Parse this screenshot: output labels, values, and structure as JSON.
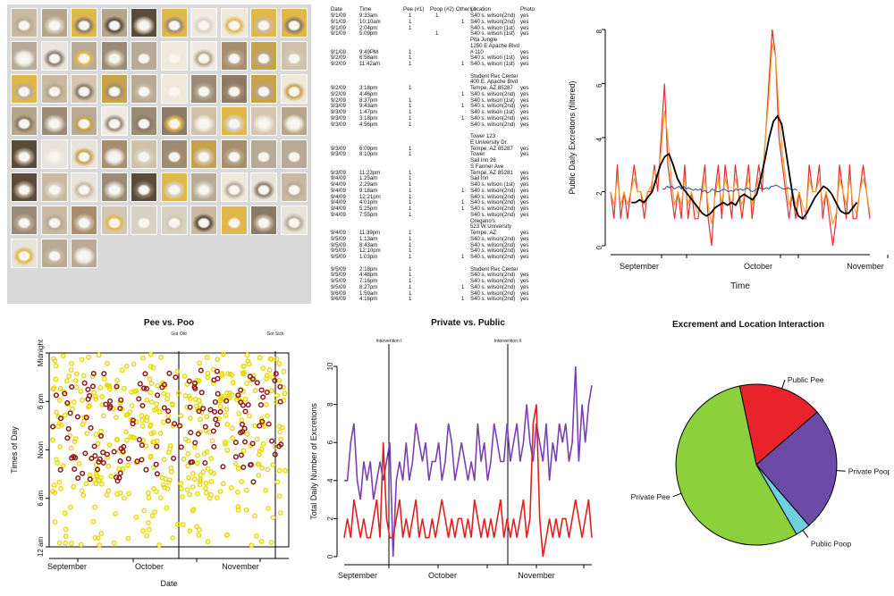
{
  "photo_grid": {
    "count": 73
  },
  "log": {
    "headers": [
      "Date",
      "Time",
      "Pee (#1)",
      "Poop (#2)",
      "Other (#",
      "Location",
      "Photo"
    ],
    "rows": [
      [
        "9/1/09",
        "9:33am",
        "1",
        "1",
        "",
        "S40 s. wilson(2nd)",
        "yes"
      ],
      [
        "9/1/09",
        "10:10am",
        "1",
        "",
        "1",
        "S40 s. wilson(2nd)",
        "yes"
      ],
      [
        "9/1/09",
        "2:04pm",
        "1",
        "",
        "",
        "S40 s. wilson (1st)",
        "yes"
      ],
      [
        "9/1/09",
        "5:09pm",
        "",
        "1",
        "",
        "S40 s. wilson (1st)",
        "yes"
      ],
      [
        "",
        "",
        "",
        "",
        "",
        "Pita Jungle",
        ""
      ],
      [
        "",
        "",
        "",
        "",
        "",
        "1250 E Apache Blvd",
        ""
      ],
      [
        "9/1/09",
        "9:49PM",
        "1",
        "",
        "",
        "# 110",
        "yes"
      ],
      [
        "9/2/09",
        "6:58am",
        "1",
        "",
        "",
        "S40 s. wilson (1st)",
        "yes"
      ],
      [
        "9/2/09",
        "11:42am",
        "1",
        "",
        "1",
        "S40 s. wilson (1st)",
        "yes"
      ],
      [
        "",
        "",
        "",
        "",
        "",
        "",
        ""
      ],
      [
        "",
        "",
        "",
        "",
        "",
        "Student Rec Center",
        ""
      ],
      [
        "",
        "",
        "",
        "",
        "",
        "400 E. Apache Blvd",
        ""
      ],
      [
        "9/2/09",
        "3:18pm",
        "1",
        "",
        "",
        "Tempe, AZ 85287",
        "yes"
      ],
      [
        "9/2/09",
        "4:46pm",
        "",
        "",
        "1",
        "S40 s. wilson(2nd)",
        "yes"
      ],
      [
        "9/2/09",
        "8:37pm",
        "1",
        "",
        "",
        "S40 s. wilson (1st)",
        "yes"
      ],
      [
        "9/3/09",
        "9:43am",
        "1",
        "",
        "1",
        "S40 s. wilson(2nd)",
        "yes"
      ],
      [
        "9/3/09",
        "1:47pm",
        "1",
        "",
        "",
        "S40 s. wilson (1st)",
        "yes"
      ],
      [
        "9/3/09",
        "3:18pm",
        "1",
        "",
        "1",
        "S40 s. wilson(2nd)",
        "yes"
      ],
      [
        "9/3/09",
        "4:56pm",
        "1",
        "",
        "",
        "S40 s. wilson(2nd)",
        "yes"
      ],
      [
        "",
        "",
        "",
        "",
        "",
        "",
        ""
      ],
      [
        "",
        "",
        "",
        "",
        "",
        "Tower             123",
        ""
      ],
      [
        "",
        "",
        "",
        "",
        "",
        "E University Dr.",
        ""
      ],
      [
        "9/3/09",
        "6:09pm",
        "1",
        "",
        "",
        "Tempe, AZ 85287",
        "yes"
      ],
      [
        "9/3/09",
        "8:10pm",
        "1",
        "",
        "",
        "Tower",
        "yes"
      ],
      [
        "",
        "",
        "",
        "",
        "",
        "Sail Inn            26",
        ""
      ],
      [
        "",
        "",
        "",
        "",
        "",
        "S Farmer Ave",
        ""
      ],
      [
        "9/3/09",
        "11:23pm",
        "1",
        "",
        "",
        "Tempe, AZ 85281",
        "yes"
      ],
      [
        "9/4/09",
        "1:25am",
        "1",
        "",
        "",
        "Sail Inn",
        "yes"
      ],
      [
        "9/4/09",
        "2:29am",
        "1",
        "",
        "",
        "S40 s. wilson (1st)",
        "yes"
      ],
      [
        "9/4/09",
        "9:18am",
        "1",
        "",
        "1",
        "S40 s. wilson(2nd)",
        "yes"
      ],
      [
        "9/4/09",
        "12:21pm",
        "1",
        "",
        "",
        "S40 s. wilson(2nd)",
        "yes"
      ],
      [
        "9/4/09",
        "4:01pm",
        "1",
        "",
        "1",
        "S40 s. wilson(2nd)",
        "yes"
      ],
      [
        "9/4/09",
        "5:25pm",
        "1",
        "",
        "1",
        "S40 s. wilson(2nd)",
        "yes"
      ],
      [
        "9/4/09",
        "7:55pm",
        "1",
        "",
        "",
        "S40 s. wilson(2nd)",
        "yes"
      ],
      [
        "",
        "",
        "",
        "",
        "",
        "Oregano's",
        ""
      ],
      [
        "",
        "",
        "",
        "",
        "",
        "523 W University",
        ""
      ],
      [
        "9/4/09",
        "11:39pm",
        "1",
        "",
        "",
        "Tempe, AZ",
        "yes"
      ],
      [
        "9/5/09",
        "1:13am",
        "1",
        "",
        "",
        "S40 s. wilson(2nd)",
        "yes"
      ],
      [
        "9/5/09",
        "8:43am",
        "1",
        "",
        "",
        "S40 s. wilson(2nd)",
        "yes"
      ],
      [
        "9/5/09",
        "12:10pm",
        "1",
        "",
        "",
        "S40 s. wilson(2nd)",
        "yes"
      ],
      [
        "9/5/09",
        "1:03pm",
        "1",
        "",
        "1",
        "S40 s. wilson(2nd)",
        "yes"
      ],
      [
        "",
        "",
        "",
        "",
        "",
        "",
        ""
      ],
      [
        "9/5/09",
        "2:18pm",
        "1",
        "",
        "",
        "Student Rec Center",
        ""
      ],
      [
        "9/5/09",
        "4:48pm",
        "1",
        "",
        "",
        "S40 s. wilson(2nd)",
        "yes"
      ],
      [
        "9/5/09",
        "7:16pm",
        "1",
        "",
        "",
        "S40 s. wilson(2nd)",
        "yes"
      ],
      [
        "9/5/09",
        "8:27pm",
        "1",
        "",
        "1",
        "S40 s. wilson(2nd)",
        "yes"
      ],
      [
        "9/6/09",
        "1:59am",
        "1",
        "",
        "",
        "S40 s. wilson(2nd)",
        "yes"
      ],
      [
        "9/6/09",
        "4:16pm",
        "1",
        "",
        "1",
        "S40 s. wilson(2nd)",
        "yes"
      ]
    ]
  },
  "chart_data": [
    {
      "type": "line",
      "title": "",
      "xlabel": "Time",
      "ylabel": "Public Daily Excretions (filtered)",
      "ylim": [
        0,
        8
      ],
      "yticks": [
        "0",
        "2",
        "4",
        "6",
        "8"
      ],
      "xticks": [
        "September",
        "October",
        "November"
      ],
      "colors": {
        "raw": "#e03030",
        "smooth_a": "#f0a030",
        "trend": "#1f4fa0",
        "loess": "#000000"
      },
      "series": [
        {
          "values": [
            2,
            1,
            3,
            1,
            2,
            1,
            2,
            3,
            2,
            2,
            1,
            2,
            2,
            3,
            2,
            4,
            6,
            3,
            2,
            1,
            2,
            1,
            3,
            1,
            2,
            1,
            1,
            2,
            3,
            1,
            0,
            2,
            3,
            1,
            3,
            2,
            1,
            3,
            2,
            1,
            2,
            3,
            1,
            2,
            3,
            2,
            4,
            6,
            8,
            7,
            4,
            3,
            2,
            1,
            2,
            1,
            2,
            1,
            1,
            3,
            2,
            2,
            3,
            1,
            2,
            1,
            0,
            1,
            3,
            2,
            1,
            3,
            1,
            1,
            2,
            3,
            2,
            1
          ]
        },
        {
          "values": [
            2,
            1.5,
            2.5,
            1.5,
            2,
            1.5,
            2,
            2.5,
            2,
            2,
            1.5,
            2,
            2.2,
            2.8,
            2.5,
            3.5,
            5,
            4,
            2.5,
            1.5,
            2,
            1.5,
            2.5,
            1.5,
            2,
            1.5,
            1.2,
            1.8,
            2.5,
            1.5,
            0.8,
            1.8,
            2.5,
            1.5,
            2.5,
            2,
            1.5,
            2.5,
            2,
            1.5,
            2,
            2.5,
            1.5,
            2,
            2.5,
            2.5,
            4,
            5.5,
            7.5,
            7,
            5,
            3.5,
            2.5,
            1.5,
            2,
            1.5,
            2,
            1.5,
            1.2,
            2.5,
            2,
            2,
            2.5,
            1.5,
            2,
            1.5,
            0.8,
            1.2,
            2.5,
            2,
            1.5,
            2.5,
            1.5,
            1.2,
            2,
            2.5,
            2,
            1.2
          ]
        },
        {
          "values": [
            2.1,
            2.1,
            2.2,
            2.15,
            2.2,
            2.1,
            2.15,
            2.2,
            2.1,
            2.2,
            2.1,
            2.15,
            2.1,
            2.05,
            2.1,
            2.05,
            2.1,
            2,
            2.05,
            1.95,
            2,
            2.1,
            2.05,
            2,
            2,
            2.05,
            2.1,
            2.05,
            2,
            2.05,
            2,
            2.1,
            2.05,
            2.1,
            2.05,
            2.1,
            2.15,
            2.05,
            2,
            2.05,
            2.1,
            2.15,
            2.1,
            2.1,
            2.15,
            2.1,
            2.2,
            2.2,
            2.25,
            2.2,
            2.15,
            2.1,
            2.1,
            2.15,
            2.1,
            2.05,
            2.1,
            2.05
          ]
        },
        {
          "values": [
            1.6,
            1.6,
            1.7,
            1.6,
            1.8,
            2,
            2.5,
            3,
            3.3,
            3.4,
            3,
            2.5,
            2.2,
            2,
            1.8,
            1.6,
            1.4,
            1.2,
            1.1,
            1.2,
            1.4,
            1.5,
            1.6,
            1.5,
            1.6,
            1.5,
            1.8,
            1.9,
            1.8,
            1.7,
            1.9,
            2.5,
            3.2,
            4,
            4.6,
            4.8,
            4.5,
            3.5,
            2.5,
            1.5,
            1.1,
            1,
            1.2,
            1.5,
            1.8,
            2,
            2.2,
            2.1,
            1.9,
            1.6,
            1.3,
            1.2,
            1.2,
            1.4,
            1.6
          ]
        }
      ]
    },
    {
      "type": "scatter",
      "title": "Pee vs. Poo",
      "xlabel": "Date",
      "ylabel": "Times of Day",
      "ylim": [
        0,
        24
      ],
      "yticks": [
        "12 am",
        "6 am",
        "Noon",
        "6 pm",
        "Midnight"
      ],
      "xticks": [
        "September",
        "October",
        "November"
      ],
      "annotations": [
        "Got Old",
        "Got Sick"
      ],
      "colors": {
        "pee": "#e8d800",
        "poo": "#8b1a1a"
      },
      "points_count": {
        "pee": 420,
        "poo": 150
      }
    },
    {
      "type": "line",
      "title": "Private vs. Public",
      "xlabel": "",
      "ylabel": "Total Daily Number of Excretions",
      "ylim": [
        0,
        10
      ],
      "yticks": [
        "0",
        "2",
        "4",
        "6",
        "8",
        "10"
      ],
      "xticks": [
        "September",
        "October",
        "November"
      ],
      "annotations": [
        "Intervention I",
        "Intervention II"
      ],
      "colors": {
        "private": "#7a3fb0",
        "public": "#e02020"
      },
      "series": [
        {
          "values": [
            4,
            4,
            6,
            7,
            4,
            3,
            5,
            4,
            5,
            3,
            4,
            5,
            4,
            5,
            6,
            0,
            4,
            5,
            4,
            6,
            4,
            5,
            7,
            6,
            5,
            6,
            4,
            5,
            5,
            6,
            4,
            5,
            7,
            6,
            4,
            5,
            6,
            5,
            4,
            5,
            4,
            7,
            5,
            6,
            4,
            5,
            7,
            6,
            5,
            5,
            7,
            5,
            6,
            7,
            5,
            6,
            8,
            6,
            5,
            7,
            6,
            5,
            7,
            4,
            6,
            5,
            7,
            6,
            7,
            5,
            6,
            10,
            5,
            8,
            6,
            8,
            9
          ]
        },
        {
          "values": [
            1,
            2,
            1,
            3,
            2,
            1,
            2,
            1,
            1,
            2,
            3,
            1,
            6,
            2,
            1,
            1,
            2,
            3,
            1,
            2,
            1,
            2,
            3,
            1,
            2,
            1,
            1,
            2,
            1,
            2,
            3,
            2,
            1,
            2,
            1,
            2,
            2,
            1,
            2,
            1,
            3,
            2,
            1,
            2,
            1,
            2,
            1,
            2,
            3,
            1,
            2,
            1,
            2,
            1,
            2,
            3,
            1,
            2,
            7,
            8,
            2,
            0,
            1,
            2,
            1,
            2,
            1,
            2,
            2,
            1,
            2,
            3,
            2,
            1,
            2,
            3,
            1
          ]
        }
      ]
    },
    {
      "type": "pie",
      "title": "Excrement and Location Interaction",
      "labels": [
        "Public Pee",
        "Private Poop",
        "Public Poop",
        "Private Pee"
      ],
      "values": [
        17,
        25,
        3,
        55
      ],
      "colors": [
        "#e8232a",
        "#6b4aa8",
        "#6fd0e0",
        "#8cd13c"
      ]
    }
  ]
}
